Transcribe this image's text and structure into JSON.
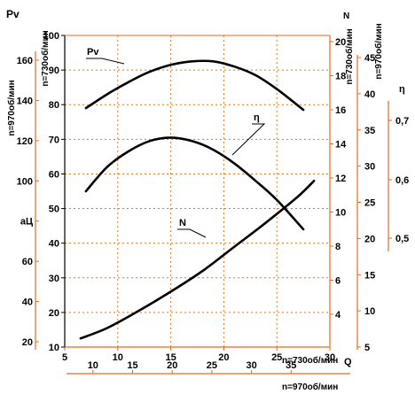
{
  "chart_data": {
    "type": "line",
    "colors": {
      "axis": "#e86a1a",
      "grid": "#e8761e",
      "curve": "#000000"
    },
    "grid": true,
    "x_axes": [
      {
        "label": "Q",
        "caption": "n=730об/мин",
        "ticks": [
          5,
          10,
          15,
          20,
          25,
          30
        ],
        "range": [
          5,
          30
        ]
      },
      {
        "label": "",
        "caption": "n=970об/мин",
        "ticks": [
          10,
          15,
          20,
          25,
          30,
          35
        ],
        "range": [
          7,
          40
        ]
      }
    ],
    "y_axes": [
      {
        "id": "pv730",
        "label": "",
        "caption": "n=730об/мин",
        "ticks": [
          "10",
          "20",
          "30",
          "40",
          "50",
          "60",
          "70",
          "80",
          "90",
          "100"
        ],
        "range": [
          10,
          100
        ]
      },
      {
        "id": "pv970",
        "label": "Pv",
        "caption": "n=970об/мин",
        "ticks": [
          "20",
          "40",
          "60",
          "аЦ",
          "100",
          "120",
          "140",
          "160"
        ],
        "range": [
          20,
          180
        ]
      },
      {
        "id": "n730",
        "label": "N",
        "caption": "n=730об/мин",
        "ticks": [
          "4",
          "6",
          "8",
          "10",
          "12",
          "14",
          "16",
          "18",
          "20"
        ],
        "range": [
          2,
          20
        ]
      },
      {
        "id": "n970",
        "label": "",
        "caption": "n=970об/мин",
        "ticks": [
          "5",
          "10",
          "15",
          "20",
          "25",
          "30",
          "35",
          "40",
          "45"
        ],
        "range": [
          5,
          45
        ]
      },
      {
        "id": "eta",
        "label": "η",
        "caption": "",
        "ticks": [
          "0,5",
          "0,6",
          "0,7"
        ],
        "range": [
          0.45,
          0.75
        ]
      }
    ],
    "series": [
      {
        "name": "Pv",
        "axis": "pv730",
        "x": [
          7,
          9,
          11,
          13,
          15,
          17,
          19,
          21,
          23,
          25,
          27.5
        ],
        "y": [
          79,
          83,
          86.5,
          89.5,
          91.5,
          92.5,
          92.5,
          91,
          88.5,
          84.5,
          78.5
        ]
      },
      {
        "name": "η",
        "axis": "pv730",
        "x": [
          7,
          9,
          11,
          13,
          15,
          17,
          19,
          21,
          23,
          25,
          27.5
        ],
        "y": [
          55,
          62,
          66.5,
          69.5,
          70.5,
          69.5,
          67,
          63,
          58,
          52.5,
          44
        ]
      },
      {
        "name": "N",
        "axis": "pv730",
        "x": [
          6.5,
          9,
          12,
          15,
          18,
          21,
          24,
          27,
          28.5
        ],
        "y": [
          12.5,
          15.5,
          20.5,
          26,
          32,
          39,
          46,
          53.5,
          58
        ]
      }
    ]
  }
}
